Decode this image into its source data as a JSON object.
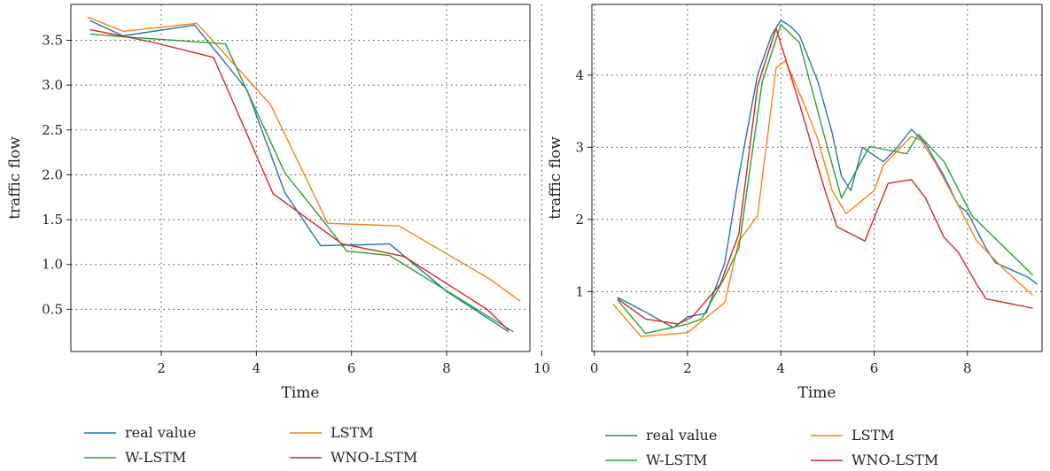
{
  "chart_data": [
    {
      "type": "line",
      "xlabel": "Time",
      "ylabel": "traffic flow",
      "xlim": [
        0.1,
        9.75
      ],
      "ylim": [
        0.03,
        3.9
      ],
      "xticks": [
        2,
        4,
        6,
        8,
        10
      ],
      "yticks": [
        0.5,
        1.0,
        1.5,
        2.0,
        2.5,
        3.0,
        3.5
      ],
      "ytick_format": 1,
      "grid": true,
      "legend": "bottom",
      "series": [
        {
          "name": "real value",
          "color": "#1f77b4",
          "points": [
            [
              0.5,
              3.72
            ],
            [
              1.2,
              3.55
            ],
            [
              2.7,
              3.67
            ],
            [
              3.8,
              2.95
            ],
            [
              4.6,
              1.8
            ],
            [
              5.35,
              1.21
            ],
            [
              6.25,
              1.22
            ],
            [
              6.8,
              1.23
            ],
            [
              8.0,
              0.7
            ],
            [
              9.3,
              0.25
            ]
          ]
        },
        {
          "name": "LSTM",
          "color": "#ff7f0e",
          "points": [
            [
              0.45,
              3.76
            ],
            [
              1.2,
              3.6
            ],
            [
              2.75,
              3.69
            ],
            [
              4.3,
              2.78
            ],
            [
              5.5,
              1.46
            ],
            [
              7.0,
              1.43
            ],
            [
              8.9,
              0.84
            ],
            [
              9.55,
              0.59
            ]
          ]
        },
        {
          "name": "W-LSTM",
          "color": "#2ca02c",
          "points": [
            [
              0.5,
              3.57
            ],
            [
              1.2,
              3.54
            ],
            [
              3.35,
              3.46
            ],
            [
              4.6,
              2.02
            ],
            [
              5.4,
              1.49
            ],
            [
              5.9,
              1.15
            ],
            [
              6.8,
              1.1
            ],
            [
              9.4,
              0.25
            ]
          ]
        },
        {
          "name": "WNO-LSTM",
          "color": "#d62728",
          "points": [
            [
              0.5,
              3.62
            ],
            [
              1.8,
              3.48
            ],
            [
              3.1,
              3.31
            ],
            [
              4.35,
              1.79
            ],
            [
              5.8,
              1.23
            ],
            [
              7.1,
              1.09
            ],
            [
              8.85,
              0.5
            ],
            [
              9.3,
              0.27
            ]
          ]
        }
      ]
    },
    {
      "type": "line",
      "xlabel": "Time",
      "ylabel": "traffic flow",
      "xlim": [
        -0.05,
        9.6
      ],
      "ylim": [
        0.17,
        4.98
      ],
      "xticks": [
        0,
        2,
        4,
        6,
        8
      ],
      "yticks": [
        1,
        2,
        3,
        4
      ],
      "ytick_format": 0,
      "grid": true,
      "legend": "bottom",
      "series": [
        {
          "name": "real value",
          "color": "#1f77b4",
          "points": [
            [
              0.5,
              0.92
            ],
            [
              1.0,
              0.75
            ],
            [
              1.7,
              0.5
            ],
            [
              2.0,
              0.65
            ],
            [
              2.4,
              0.7
            ],
            [
              2.8,
              1.4
            ],
            [
              3.1,
              2.6
            ],
            [
              3.5,
              4.0
            ],
            [
              3.8,
              4.55
            ],
            [
              4.0,
              4.76
            ],
            [
              4.2,
              4.68
            ],
            [
              4.4,
              4.55
            ],
            [
              4.8,
              3.9
            ],
            [
              5.1,
              3.2
            ],
            [
              5.3,
              2.6
            ],
            [
              5.5,
              2.4
            ],
            [
              5.75,
              3.0
            ],
            [
              6.2,
              2.8
            ],
            [
              6.5,
              3.0
            ],
            [
              6.8,
              3.25
            ],
            [
              7.1,
              3.05
            ],
            [
              7.5,
              2.6
            ],
            [
              7.8,
              2.2
            ],
            [
              8.0,
              2.1
            ],
            [
              8.4,
              1.6
            ],
            [
              8.6,
              1.4
            ],
            [
              9.3,
              1.2
            ],
            [
              9.5,
              1.1
            ]
          ]
        },
        {
          "name": "LSTM",
          "color": "#ff7f0e",
          "points": [
            [
              0.4,
              0.83
            ],
            [
              1.0,
              0.38
            ],
            [
              2.0,
              0.43
            ],
            [
              2.8,
              0.85
            ],
            [
              3.1,
              1.7
            ],
            [
              3.5,
              2.05
            ],
            [
              3.9,
              4.1
            ],
            [
              4.1,
              4.2
            ],
            [
              4.5,
              3.6
            ],
            [
              4.8,
              3.1
            ],
            [
              5.1,
              2.4
            ],
            [
              5.4,
              2.08
            ],
            [
              6.0,
              2.4
            ],
            [
              6.2,
              2.75
            ],
            [
              6.8,
              3.15
            ],
            [
              7.0,
              3.1
            ],
            [
              7.3,
              2.8
            ],
            [
              7.8,
              2.2
            ],
            [
              8.2,
              1.7
            ],
            [
              8.8,
              1.3
            ],
            [
              9.4,
              0.95
            ]
          ]
        },
        {
          "name": "W-LSTM",
          "color": "#2ca02c",
          "points": [
            [
              0.5,
              0.88
            ],
            [
              1.1,
              0.42
            ],
            [
              2.0,
              0.55
            ],
            [
              2.3,
              0.62
            ],
            [
              2.8,
              1.2
            ],
            [
              3.1,
              1.6
            ],
            [
              3.6,
              3.9
            ],
            [
              4.0,
              4.7
            ],
            [
              4.4,
              4.45
            ],
            [
              5.0,
              3.0
            ],
            [
              5.3,
              2.3
            ],
            [
              5.9,
              3.01
            ],
            [
              6.7,
              2.91
            ],
            [
              6.95,
              3.18
            ],
            [
              7.5,
              2.8
            ],
            [
              8.1,
              2.05
            ],
            [
              9.4,
              1.23
            ]
          ]
        },
        {
          "name": "WNO-LSTM",
          "color": "#d62728",
          "points": [
            [
              0.5,
              0.9
            ],
            [
              1.1,
              0.62
            ],
            [
              1.8,
              0.55
            ],
            [
              2.1,
              0.65
            ],
            [
              2.7,
              1.1
            ],
            [
              3.1,
              1.8
            ],
            [
              3.5,
              3.85
            ],
            [
              3.9,
              4.65
            ],
            [
              4.4,
              3.6
            ],
            [
              4.9,
              2.5
            ],
            [
              5.2,
              1.9
            ],
            [
              5.8,
              1.7
            ],
            [
              6.3,
              2.5
            ],
            [
              6.8,
              2.55
            ],
            [
              7.1,
              2.3
            ],
            [
              7.5,
              1.75
            ],
            [
              7.8,
              1.55
            ],
            [
              8.2,
              1.1
            ],
            [
              8.4,
              0.9
            ],
            [
              9.4,
              0.77
            ]
          ]
        }
      ]
    }
  ]
}
